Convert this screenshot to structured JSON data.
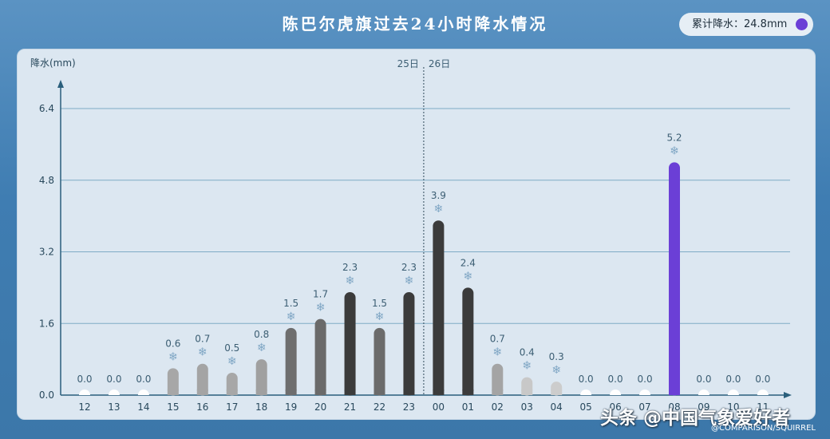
{
  "title": "陈巴尔虎旗过去24小时降水情况",
  "total_badge": {
    "label": "累计降水：24.8mm",
    "dot_color": "#6b3fd6"
  },
  "watermark": "头条 @中国气象爱好者",
  "credit": "@COMPARISON/SQUIRREL",
  "chart_data": {
    "type": "bar",
    "ylabel": "降水(mm)",
    "yticks": [
      0.0,
      1.6,
      3.2,
      4.8,
      6.4
    ],
    "ylim": [
      0,
      6.4
    ],
    "grid": true,
    "categories": [
      "12",
      "13",
      "14",
      "15",
      "16",
      "17",
      "18",
      "19",
      "20",
      "21",
      "22",
      "23",
      "00",
      "01",
      "02",
      "03",
      "04",
      "05",
      "06",
      "07",
      "08",
      "09",
      "10",
      "11"
    ],
    "values": [
      0.0,
      0.0,
      0.0,
      0.6,
      0.7,
      0.5,
      0.8,
      1.5,
      1.7,
      2.3,
      1.5,
      2.3,
      3.9,
      2.4,
      0.7,
      0.4,
      0.3,
      0.0,
      0.0,
      0.0,
      5.2,
      0.0,
      0.0,
      0.0
    ],
    "value_labels": [
      "0.0",
      "0.0",
      "0.0",
      "0.6",
      "0.7",
      "0.5",
      "0.8",
      "1.5",
      "1.7",
      "2.3",
      "1.5",
      "2.3",
      "3.9",
      "2.4",
      "0.7",
      "0.4",
      "0.3",
      "0.0",
      "0.0",
      "0.0",
      "5.2",
      "0.0",
      "0.0",
      "0.0"
    ],
    "colors": [
      "#ffffff",
      "#ffffff",
      "#ffffff",
      "#a7a7a7",
      "#a4a4a4",
      "#a7a7a7",
      "#a0a0a0",
      "#6e6e6e",
      "#6a6a6a",
      "#3b3b3b",
      "#6b6b6b",
      "#3b3b3b",
      "#3b3b3b",
      "#3b3b3b",
      "#a4a4a4",
      "#c8c8c8",
      "#cccccc",
      "#ffffff",
      "#ffffff",
      "#ffffff",
      "#6b3fd6",
      "#ffffff",
      "#ffffff",
      "#ffffff"
    ],
    "snow_marker": "❄",
    "day_divider": {
      "after_category": "23",
      "left_label": "25日",
      "right_label": "26日"
    }
  }
}
